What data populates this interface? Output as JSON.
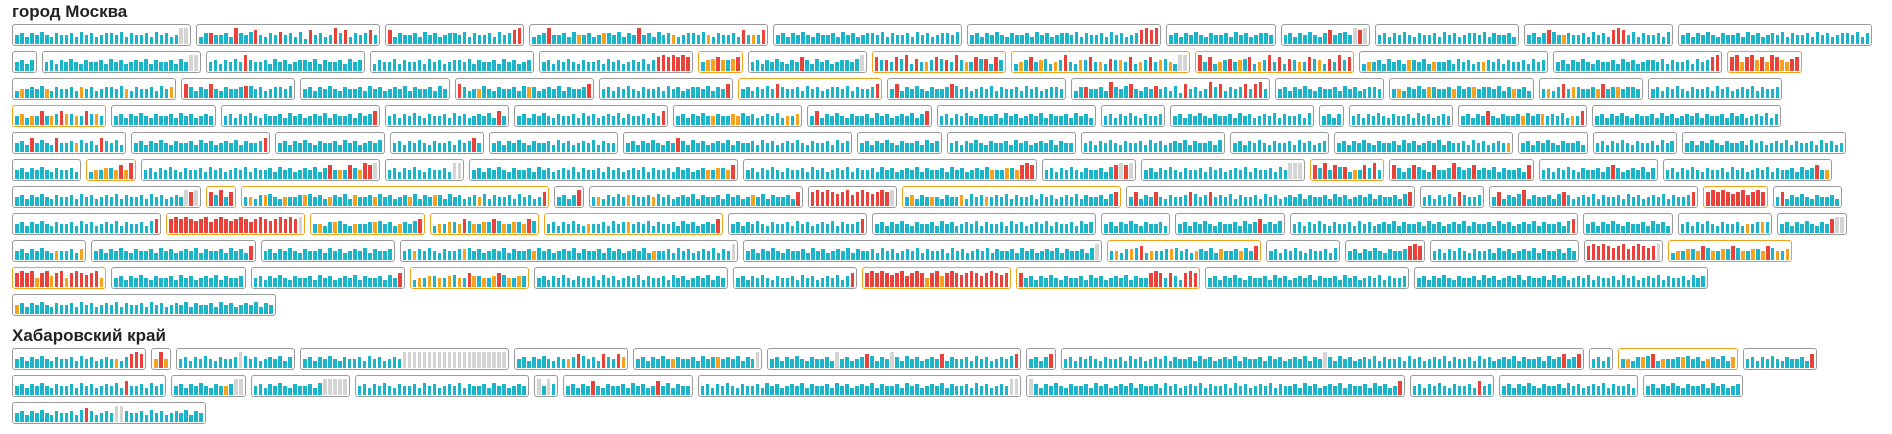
{
  "sections": [
    {
      "title": "город Москва",
      "boxes": [
        {
          "frame": "gray",
          "bars": "564657546556475645665746556475645xx"
        },
        {
          "frame": "gray",
          "bars": "46F5564I657H5465G56473H5645I6H4656H5"
        },
        {
          "frame": "gray",
          "bars": "H465564756456657465564756HI"
        },
        {
          "frame": "gray",
          "bars": "456I55647e5645f657465I564756e456657e465564H5e5H"
        },
        {
          "frame": "gray",
          "bars": "5646575465564756456657465564756456657"
        },
        {
          "frame": "gray",
          "bars": "5646575465564756456657465564756456HIHI"
        },
        {
          "frame": "gray",
          "bars": "564657546556475645665"
        },
        {
          "frame": "gray",
          "bars": "564657546H5675xHx"
        },
        {
          "frame": "gray",
          "bars": "5646575465564756456657465564"
        },
        {
          "frame": "gray",
          "bars": "5646H75e655647564HIH574655647"
        },
        {
          "frame": "gray",
          "bars": "56465754655647564565746556475645665746"
        },
        {
          "frame": "gray",
          "bars": "5646"
        },
        {
          "frame": "gray",
          "bars": "56465754655647564565746556475xx"
        },
        {
          "frame": "gray",
          "bars": "5646575I65564756456657465564756"
        },
        {
          "frame": "gray",
          "bars": "46557465564756456657465564756456"
        },
        {
          "frame": "gray",
          "bars": "56465754655647564565746HIHIHIH"
        },
        {
          "frame": "orange",
          "bars": "5fgHf6gH"
        },
        {
          "frame": "gray",
          "bars": "5646575465H64756456657x"
        },
        {
          "frame": "orange",
          "bars": "H6F5H7I4G5e6H7F5I6e5H7G4H6"
        },
        {
          "frame": "orange",
          "bars": "4e6H5f74e6I54f6H5e4G6f5H4e6H5f7e4xx"
        },
        {
          "frame": "orange",
          "bars": "I5H4e6G5f7H4e6I5H4G6e5H7f4G5I6H"
        },
        {
          "frame": "gray",
          "bars": "4e5647564f6574e556475645e657465564756"
        },
        {
          "frame": "gray",
          "bars": "5646575465564756456657465564756HI"
        },
        {
          "frame": "orange",
          "bars": "HIeHIfHeIHfeGH"
        },
        {
          "frame": "gray",
          "bars": "4e5657e465564f56456657e46556475f"
        },
        {
          "frame": "gray",
          "bars": "H6465H546556G756456657"
        },
        {
          "frame": "gray",
          "bars": "56465754655647564565746556475"
        },
        {
          "frame": "gray",
          "bars": "H645e754655647f64565746556H"
        },
        {
          "frame": "gray",
          "bars": "5646575465564756456657465H"
        },
        {
          "frame": "orange",
          "bars": "5646575H6556475645665746556H"
        },
        {
          "frame": "gray",
          "bars": "5H4657546556H7564565746556475645665"
        },
        {
          "frame": "gray",
          "bars": "46F5564I657H5465G56473H5645I6H4656H5HI5"
        },
        {
          "frame": "gray",
          "bars": "564657546556475645665"
        },
        {
          "frame": "gray",
          "bars": "5e46575f6556e756f5665746e564"
        },
        {
          "frame": "gray",
          "bars": "5e46H5f6556eH56f5665"
        },
        {
          "frame": "gray",
          "bars": "56465754655647564565746556"
        },
        {
          "frame": "orange",
          "bars": "5f4e5H5e6Hf6e5H6f5"
        },
        {
          "frame": "gray",
          "bars": "56465754655647564565"
        },
        {
          "frame": "gray",
          "bars": "564657546556475645657465564756H"
        },
        {
          "frame": "gray",
          "bars": "5646575465564756456574H5"
        },
        {
          "frame": "gray",
          "bars": "56465754655647564565746556475H"
        },
        {
          "frame": "gray",
          "bars": "5646575e655fe756456574e5f"
        },
        {
          "frame": "gray",
          "bars": "5H465754655647564565746H"
        },
        {
          "frame": "gray",
          "bars": "5646575465564756456574655647564"
        },
        {
          "frame": "gray",
          "bars": "564657546556"
        },
        {
          "frame": "gray",
          "bars": "5646575465564756456574655647"
        },
        {
          "frame": "gray",
          "bars": "5646"
        },
        {
          "frame": "gray",
          "bars": "56465754655647564565"
        },
        {
          "frame": "gray",
          "bars": "56465H546556e756f56574e5H"
        },
        {
          "frame": "gray",
          "bars": "5646575465564756456574655647564565746"
        },
        {
          "frame": "gray",
          "bars": "564H5754H556e7564H6574"
        },
        {
          "frame": "gray",
          "bars": "56465754655647564565746556H"
        },
        {
          "frame": "gray",
          "bars": "564657546556475645657"
        },
        {
          "frame": "gray",
          "bars": "5646575465564756H5"
        },
        {
          "frame": "gray",
          "bars": "5646575465564756456574655"
        },
        {
          "frame": "gray",
          "bars": "5646575465H6475645657465564756456575465564756"
        },
        {
          "frame": "gray",
          "bars": "5646575465564756"
        },
        {
          "frame": "gray",
          "bars": "5646575465564756456574655"
        },
        {
          "frame": "gray",
          "bars": "5646575465564756456574655647"
        },
        {
          "frame": "gray",
          "bars": "5646575465564756456"
        },
        {
          "frame": "gray",
          "bars": "5646575465564756456574655647564565e"
        },
        {
          "frame": "gray",
          "bars": "5646575465564"
        },
        {
          "frame": "gray",
          "bars": "5646575465564756"
        },
        {
          "frame": "gray",
          "bars": "56465754655647564565746556475645"
        },
        {
          "frame": "gray",
          "bars": "5646575465564"
        },
        {
          "frame": "orange",
          "bars": "4e5f6eHeI"
        },
        {
          "frame": "gray",
          "bars": "5646575465564756456574655647564565746H5e5H6eIHx"
        },
        {
          "frame": "gray",
          "bars": "5646575465564xx"
        },
        {
          "frame": "gray",
          "bars": "56465754655647564565746556475645657465564756456e5f6eH"
        },
        {
          "frame": "gray",
          "bars": "5646575465564756456574655647564565746556475645657e55f6eHIH"
        },
        {
          "frame": "gray",
          "bars": "56465754655647HxHx"
        },
        {
          "frame": "gray",
          "bars": "56465754655647564565746556475xxx"
        },
        {
          "frame": "orange",
          "bars": "H6I5H7G4e5H6I5"
        },
        {
          "frame": "gray",
          "bars": "H646H754H556I756H5657465564H"
        },
        {
          "frame": "gray",
          "bars": "56465754655647H64565746"
        },
        {
          "frame": "gray",
          "bars": "564657546556475645657465564756H5e"
        },
        {
          "frame": "gray",
          "bars": "5646575465564756456574655647564565xHx"
        },
        {
          "frame": "orange",
          "bars": "H6I5H"
        },
        {
          "frame": "orange",
          "bars": "5e46f754e556f7564e6574f556e756456e7465f64756456e746556475645H"
        },
        {
          "frame": "gray",
          "bars": "5646I"
        },
        {
          "frame": "gray",
          "bars": "5e46575f6556e7564565746556475645f57465564H"
        },
        {
          "frame": "gray",
          "bars": "HIHIHGHIFHIHGHIHx"
        },
        {
          "frame": "orange",
          "bars": "5f465e54655f4756e5657465564756456574655647H"
        },
        {
          "frame": "gray",
          "bars": "5H465H546556H756H565746556475645657465564756456574655647H"
        },
        {
          "frame": "gray",
          "bars": "5646575H6556"
        },
        {
          "frame": "gray",
          "bars": "5H4657I4655647H6456574655647564565746556H"
        },
        {
          "frame": "orange",
          "bars": "HIHIHGHIFHIH"
        },
        {
          "frame": "gray",
          "bars": "5H46575465564"
        },
        {
          "frame": "gray",
          "bars": "5646575465564756456574655647H"
        },
        {
          "frame": "orange",
          "bars": "HIHIHGHIFHIHGHIHFHIHGHIHIHx"
        },
        {
          "frame": "orange",
          "bars": "5e46f754e556f7564e657H"
        },
        {
          "frame": "orange",
          "bars": "4e5f6eH7e5f6H7e5f6eH7"
        },
        {
          "frame": "orange",
          "bars": "56465754e5564756f56574655647564565H"
        },
        {
          "frame": "gray",
          "bars": "56465754655647564565746556H"
        },
        {
          "frame": "gray",
          "bars": "56465754655647564565746556475645657465564756"
        },
        {
          "frame": "gray",
          "bars": "5646575465564"
        },
        {
          "frame": "gray",
          "bars": "5646575465564756H5657"
        },
        {
          "frame": "gray",
          "bars": "56465754655647564565746556475645657465564756456574655647H"
        },
        {
          "frame": "gray",
          "bars": "56465754655647564"
        },
        {
          "frame": "gray",
          "bars": "5646575465564e56f6"
        },
        {
          "frame": "gray",
          "bars": "5646575465Hxx"
        },
        {
          "frame": "gray",
          "bars": "56465754e5564f"
        },
        {
          "frame": "gray",
          "bars": "5646575465564756456574655647564H"
        },
        {
          "frame": "gray",
          "bars": "56465754655647564565746556"
        },
        {
          "frame": "gray",
          "bars": "56e657546556f7564565746556e75645657465564756456574e556475645657465x"
        },
        {
          "frame": "gray",
          "bars": "5646575465564756456574655647564565746556475645657465564756456574655647x"
        },
        {
          "frame": "orange",
          "bars": "5e46f7H4e556f7564e6574f556e75H"
        },
        {
          "frame": "gray",
          "bars": "56465754655647"
        },
        {
          "frame": "gray",
          "bars": "564657546556HIH"
        },
        {
          "frame": "gray",
          "bars": "56465754655647564565746556475"
        },
        {
          "frame": "gray",
          "bars": "HIHIHGHIFHIHGHx"
        },
        {
          "frame": "orange",
          "bars": "4e5f6eH7e5f6H7e5f6eH7e5f"
        },
        {
          "frame": "orange",
          "bars": "HIHIeHIfHIeHIHGHIe"
        },
        {
          "frame": "gray",
          "bars": "56465754655647564565746556"
        },
        {
          "frame": "gray",
          "bars": "56465754655647564565746556475H"
        },
        {
          "frame": "orange",
          "bars": "4e5f6e5f7e5Hf6e5fH7e5f6"
        },
        {
          "frame": "gray",
          "bars": "56465754655647564565746556475645657465"
        },
        {
          "frame": "gray",
          "bars": "56465754655647564565746H"
        },
        {
          "frame": "orange",
          "bars": "HIHIHGHIFHIHeHIfHIHGHIHFHIHGH"
        },
        {
          "frame": "orange",
          "bars": "H5646575465564756456574655HIH5H64HIH"
        },
        {
          "frame": "gray",
          "bars": "5646575465564756456574655647564565746556"
        },
        {
          "frame": "gray",
          "bars": "5646575465564756456574655647564565746556475645657465564756"
        },
        {
          "frame": "gray",
          "bars": "e646575465564756456574655647564565746556475645657465"
        }
      ]
    },
    {
      "title": "Хабаровский край",
      "boxes": [
        {
          "frame": "gray",
          "bars": "56465754655647564565e46HIH"
        },
        {
          "frame": "gray",
          "bars": "eIe"
        },
        {
          "frame": "gray",
          "bars": "564657546556x7564565746"
        },
        {
          "frame": "gray",
          "bars": "56465754655647564565xxxxxxxxxxxxxxxxxxxxx"
        },
        {
          "frame": "gray",
          "bars": "5646575465e6H7564H65Hf"
        },
        {
          "frame": "gray",
          "bars": "5646575e65564756f5657465x"
        },
        {
          "frame": "gray",
          "bars": "5646575465564x56456H7465x647564565H46556475645657H"
        },
        {
          "frame": "gray",
          "bars": "5646H"
        },
        {
          "frame": "gray",
          "bars": "5646575465564756456574655647564565746556475645657465x64756456574655647564565746556475645657465564756H56H"
        },
        {
          "frame": "gray",
          "bars": "5646"
        },
        {
          "frame": "orange",
          "bars": "5e46f7H4e556f7564e6574f"
        },
        {
          "frame": "gray",
          "bars": "5646575465564H"
        },
        {
          "frame": "gray",
          "bars": "5646575465564756456574H5564756"
        },
        {
          "frame": "gray",
          "bars": "5646575465e6xx"
        },
        {
          "frame": "gray",
          "bars": "56465754655647xxxxx"
        },
        {
          "frame": "gray",
          "bars": "5646575465564756456574655647564565"
        },
        {
          "frame": "gray",
          "bars": "x5x6"
        },
        {
          "frame": "gray",
          "bars": "56465H546556475645H574655"
        },
        {
          "frame": "gray",
          "bars": "56465754655647564565746556475645657465564756456574655647564565xx"
        },
        {
          "frame": "gray",
          "bars": "x6465754655647564565746556475645657465564756456574655647564565746556475645H"
        },
        {
          "frame": "gray",
          "bars": "5646575465564H56"
        },
        {
          "frame": "gray",
          "bars": "564657546556475645657465564"
        },
        {
          "frame": "gray",
          "bars": "5646575465564756456"
        },
        {
          "frame": "gray",
          "bars": "56465754655647H64565xx6556475645657465"
        }
      ]
    }
  ]
}
